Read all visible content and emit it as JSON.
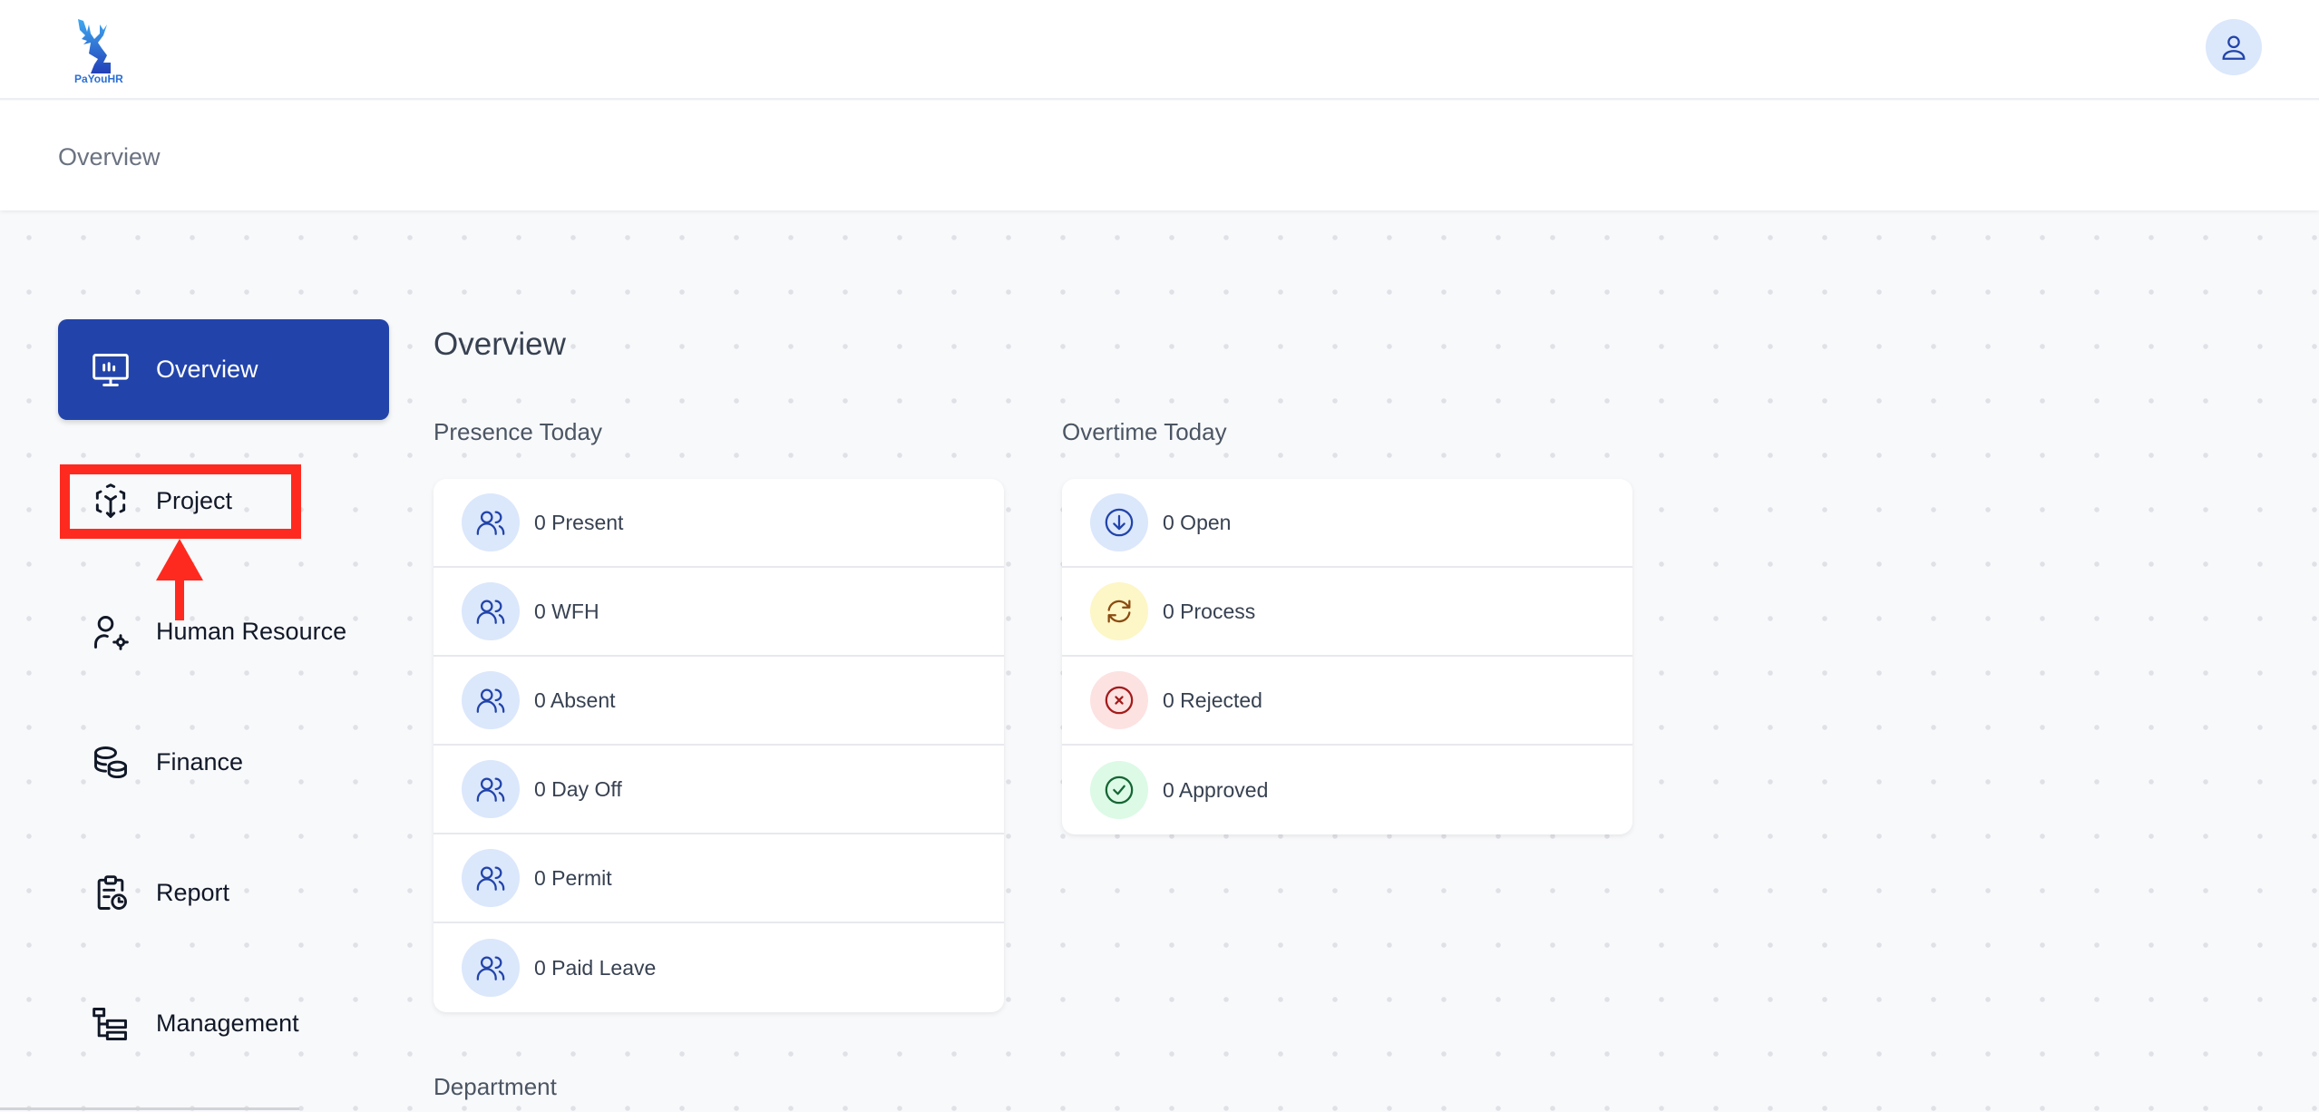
{
  "header": {
    "logo_text": "PaYouHR",
    "avatar_icon": "user-icon"
  },
  "breadcrumb": "Overview",
  "sidebar": {
    "items": [
      {
        "label": "Overview",
        "icon": "monitor-chart-icon",
        "active": true
      },
      {
        "label": "Project",
        "icon": "project-cube-icon"
      },
      {
        "label": "Human Resource",
        "icon": "user-gear-icon"
      },
      {
        "label": "Finance",
        "icon": "coins-icon"
      },
      {
        "label": "Report",
        "icon": "clipboard-clock-icon"
      },
      {
        "label": "Management",
        "icon": "hierarchy-icon"
      }
    ]
  },
  "main": {
    "title": "Overview",
    "presence": {
      "title": "Presence Today",
      "items": [
        {
          "label": "0 Present",
          "icon": "users-icon",
          "bg": "#dbe7fb",
          "fg": "#2244aa"
        },
        {
          "label": "0 WFH",
          "icon": "users-icon",
          "bg": "#dbe7fb",
          "fg": "#2244aa"
        },
        {
          "label": "0 Absent",
          "icon": "users-icon",
          "bg": "#dbe7fb",
          "fg": "#2244aa"
        },
        {
          "label": "0 Day Off",
          "icon": "users-icon",
          "bg": "#dbe7fb",
          "fg": "#2244aa"
        },
        {
          "label": "0 Permit",
          "icon": "users-icon",
          "bg": "#dbe7fb",
          "fg": "#2244aa"
        },
        {
          "label": "0 Paid Leave",
          "icon": "users-icon",
          "bg": "#dbe7fb",
          "fg": "#2244aa"
        }
      ]
    },
    "overtime": {
      "title": "Overtime Today",
      "items": [
        {
          "label": "0 Open",
          "icon": "arrow-down-circle-icon",
          "bg": "#dbe7fb",
          "fg": "#2244aa"
        },
        {
          "label": "0 Process",
          "icon": "refresh-icon",
          "bg": "#fdf6c6",
          "fg": "#8a4b12"
        },
        {
          "label": "0 Rejected",
          "icon": "x-circle-icon",
          "bg": "#fde2e2",
          "fg": "#a31b1b"
        },
        {
          "label": "0 Approved",
          "icon": "check-circle-icon",
          "bg": "#dcfae6",
          "fg": "#166534"
        }
      ]
    },
    "department": {
      "title": "Department"
    }
  },
  "colors": {
    "accent": "#2244aa",
    "annotation": "#ff2a1f"
  }
}
